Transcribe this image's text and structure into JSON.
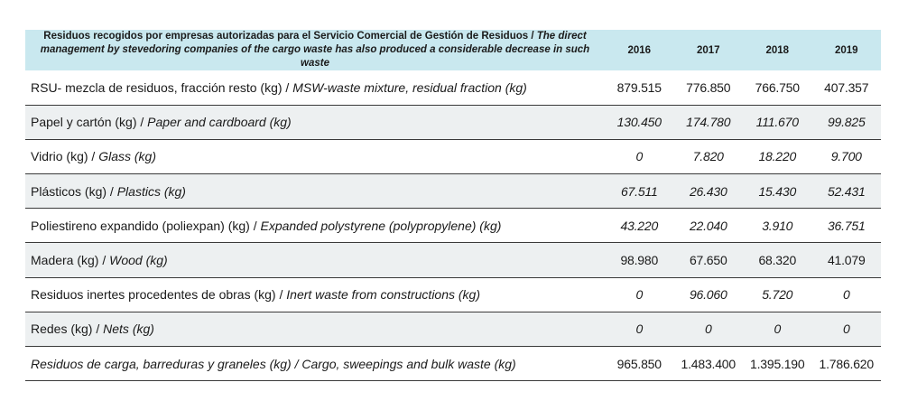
{
  "table": {
    "header": {
      "label_es": "Residuos recogidos por empresas autorizadas para el Servicio Comercial de Gestión de Residuos / ",
      "label_en": "The direct management by stevedoring companies of the cargo waste has also produced a considerable decrease in such waste",
      "years": [
        "2016",
        "2017",
        "2018",
        "2019"
      ]
    },
    "rows": [
      {
        "es": "RSU- mezcla de residuos, fracción resto (kg) / ",
        "en": "MSW-waste mixture, residual fraction (kg)",
        "values": [
          "879.515",
          "776.850",
          "766.750",
          "407.357"
        ]
      },
      {
        "es": "Papel y cartón (kg) / ",
        "en": "Paper and cardboard (kg)",
        "values": [
          "130.450",
          "174.780",
          "111.670",
          "99.825"
        ]
      },
      {
        "es": "Vidrio (kg) / ",
        "en": "Glass (kg)",
        "values": [
          "0",
          "7.820",
          "18.220",
          "9.700"
        ]
      },
      {
        "es": "Plásticos (kg) / ",
        "en": "Plastics (kg)",
        "values": [
          "67.511",
          "26.430",
          "15.430",
          "52.431"
        ]
      },
      {
        "es": "Poliestireno expandido (poliexpan) (kg) / ",
        "en": "Expanded polystyrene (polypropylene) (kg)",
        "values": [
          "43.220",
          "22.040",
          "3.910",
          "36.751"
        ]
      },
      {
        "es": "Madera (kg) / ",
        "en": "Wood (kg)",
        "values": [
          "98.980",
          "67.650",
          "68.320",
          "41.079"
        ]
      },
      {
        "es": "Residuos inertes procedentes de obras (kg) / ",
        "en": "Inert waste from constructions (kg)",
        "values": [
          "0",
          "96.060",
          "5.720",
          "0"
        ]
      },
      {
        "es": "Redes (kg) / ",
        "en": "Nets (kg)",
        "values": [
          "0",
          "0",
          "0",
          "0"
        ]
      },
      {
        "es": "Residuos de carga, barreduras y graneles (kg) / ",
        "en": "Cargo, sweepings and bulk waste (kg)",
        "values": [
          "965.850",
          "1.483.400",
          "1.395.190",
          "1.786.620"
        ]
      }
    ]
  }
}
